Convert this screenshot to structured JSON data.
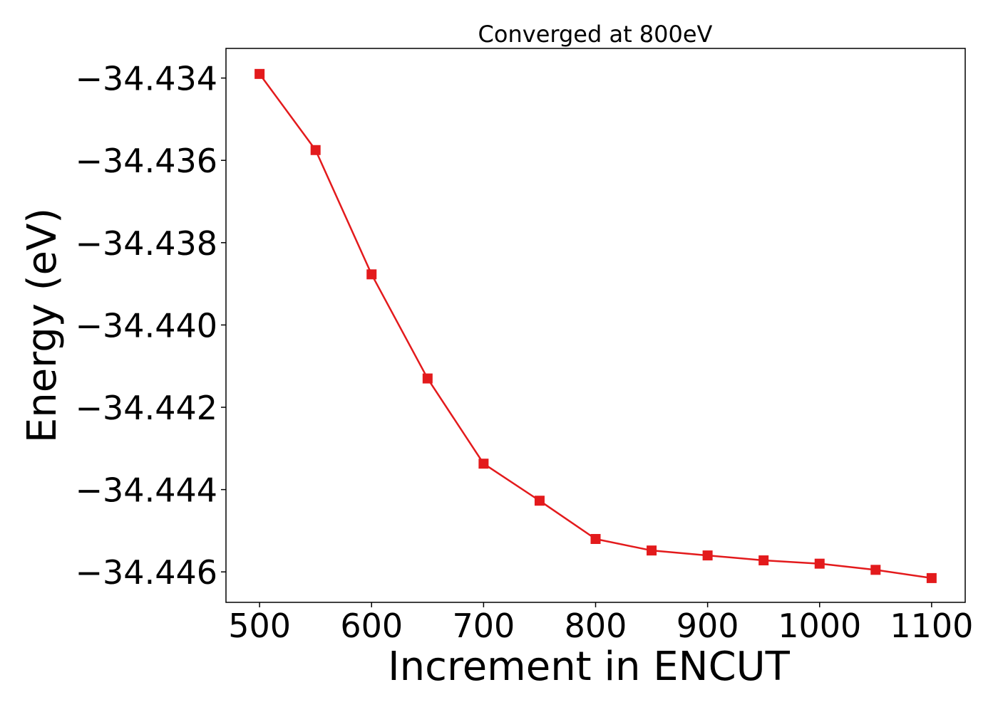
{
  "chart_data": {
    "type": "line",
    "title": "Converged at 800eV",
    "xlabel": "Increment in ENCUT",
    "ylabel": "Energy (eV)",
    "x": [
      500,
      550,
      600,
      650,
      700,
      750,
      800,
      850,
      900,
      950,
      1000,
      1050,
      1100
    ],
    "series": [
      {
        "values": [
          -34.4339,
          -34.43575,
          -34.43877,
          -34.4413,
          -34.44337,
          -34.44427,
          -34.4452,
          -34.44548,
          -34.4456,
          -34.44572,
          -34.4458,
          -34.44595,
          -34.44615
        ],
        "color": "#e31a1c",
        "marker": "square"
      }
    ],
    "xlim": [
      470,
      1130
    ],
    "ylim": [
      -34.44674,
      -34.43328
    ],
    "xticks": [
      500,
      600,
      700,
      800,
      900,
      1000,
      1100
    ],
    "xtick_labels": [
      "500",
      "600",
      "700",
      "800",
      "900",
      "1000",
      "1100"
    ],
    "yticks": [
      -34.434,
      -34.436,
      -34.438,
      -34.44,
      -34.442,
      -34.444,
      -34.446
    ],
    "ytick_labels": [
      "−34.434",
      "−34.436",
      "−34.438",
      "−34.440",
      "−34.442",
      "−34.444",
      "−34.446"
    ],
    "grid": false,
    "legend": "none"
  }
}
